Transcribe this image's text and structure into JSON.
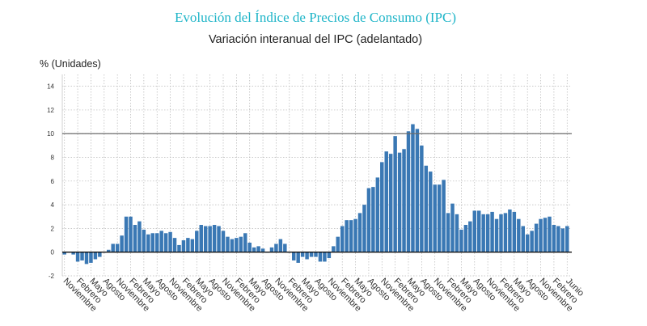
{
  "header": {
    "title": "Evolución del Índice de Precios de Consumo (IPC)"
  },
  "chart_data": {
    "type": "bar",
    "title": "Variación interanual del IPC (adelantado)",
    "ylabel": "% (Unidades)",
    "xlabel": "",
    "ylim": [
      -2,
      15
    ],
    "y_ticks": [
      -2,
      0,
      2,
      4,
      6,
      8,
      10,
      12,
      14
    ],
    "reference_line": 10,
    "grid": true,
    "legend": "none",
    "bar_color": "#3a78b4",
    "x_tick_labels": [
      "Noviembre",
      "Febrero",
      "Mayo",
      "Agosto",
      "Noviembre",
      "Febrero",
      "Mayo",
      "Agosto",
      "Noviembre",
      "Febrero",
      "Mayo",
      "Agosto",
      "Noviembre",
      "Febrero",
      "Mayo",
      "Agosto",
      "Noviembre",
      "Febrero",
      "Mayo",
      "Agosto",
      "Noviembre",
      "Febrero",
      "Mayo",
      "Agosto",
      "Noviembre",
      "Febrero",
      "Mayo",
      "Agosto",
      "Noviembre",
      "Febrero",
      "Mayo",
      "Agosto",
      "Noviembre",
      "Febrero",
      "Mayo",
      "Agosto",
      "Noviembre",
      "Febrero",
      "Junio"
    ],
    "values": [
      -0.2,
      0.0,
      -0.2,
      -0.8,
      -0.7,
      -1.0,
      -0.9,
      -0.6,
      -0.4,
      0.0,
      0.2,
      0.7,
      0.7,
      1.4,
      3.0,
      3.0,
      2.3,
      2.6,
      1.9,
      1.5,
      1.6,
      1.6,
      1.8,
      1.6,
      1.7,
      1.2,
      0.6,
      1.0,
      1.2,
      1.1,
      1.8,
      2.3,
      2.2,
      2.2,
      2.3,
      2.2,
      1.8,
      1.3,
      1.1,
      1.2,
      1.3,
      1.6,
      0.8,
      0.4,
      0.5,
      0.3,
      0.0,
      0.4,
      0.7,
      1.1,
      0.7,
      0.0,
      -0.7,
      -0.9,
      -0.4,
      -0.6,
      -0.4,
      -0.4,
      -0.8,
      -0.8,
      -0.5,
      0.5,
      1.3,
      2.2,
      2.7,
      2.7,
      2.8,
      3.3,
      4.0,
      5.4,
      5.5,
      6.3,
      7.6,
      8.5,
      8.3,
      9.8,
      8.4,
      8.7,
      10.2,
      10.8,
      10.4,
      9.0,
      7.3,
      6.8,
      5.7,
      5.7,
      6.1,
      3.3,
      4.1,
      3.2,
      1.9,
      2.3,
      2.6,
      3.5,
      3.5,
      3.2,
      3.2,
      3.4,
      2.8,
      3.2,
      3.3,
      3.6,
      3.4,
      2.8,
      2.2,
      1.5,
      1.8,
      2.4,
      2.8,
      2.9,
      3.0,
      2.3,
      2.2,
      2.0,
      2.2
    ]
  }
}
